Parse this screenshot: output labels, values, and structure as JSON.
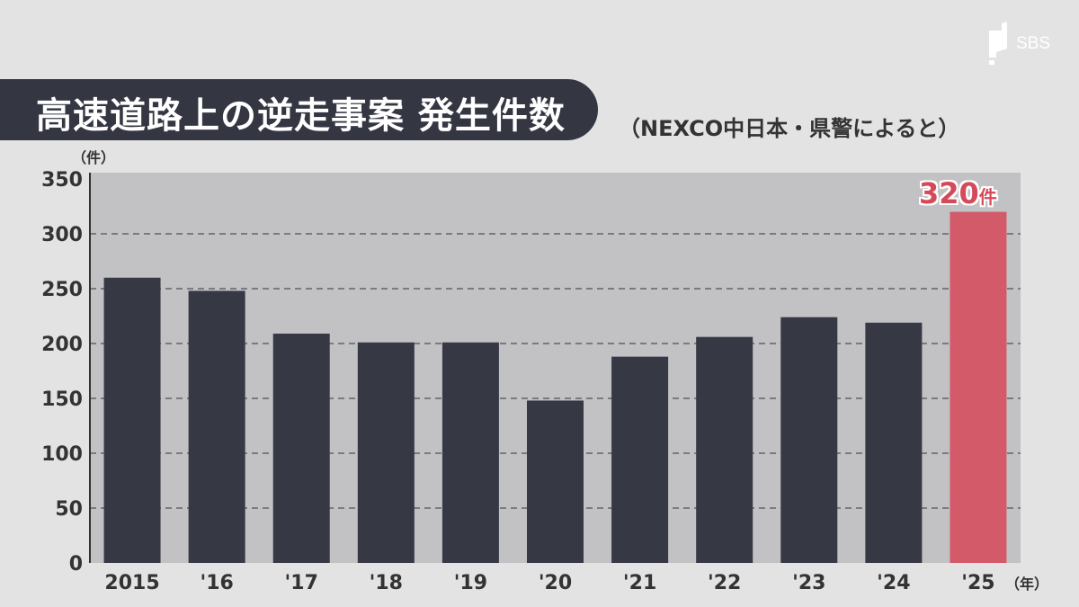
{
  "brand": {
    "logo_text": "SBS"
  },
  "header": {
    "title": "高速道路上の逆走事案 発生件数",
    "source": "（NEXCO中日本・県警によると）"
  },
  "chart_data": {
    "type": "bar",
    "title": "高速道路上の逆走事案 発生件数",
    "ylabel": "（件）",
    "xlabel": "（年）",
    "ylim": [
      0,
      350
    ],
    "yticks": [
      0,
      50,
      100,
      150,
      200,
      250,
      300,
      350
    ],
    "grid": true,
    "categories": [
      "2015",
      "'16",
      "'17",
      "'18",
      "'19",
      "'20",
      "'21",
      "'22",
      "'23",
      "'24",
      "'25"
    ],
    "values": [
      260,
      248,
      209,
      201,
      201,
      148,
      188,
      206,
      224,
      219,
      320
    ],
    "highlight": {
      "index": 10,
      "value_label": "320",
      "unit_label": "件",
      "color": "#d35a68"
    },
    "bar_color": "#363844",
    "plot_background": "#c2c2c4"
  }
}
